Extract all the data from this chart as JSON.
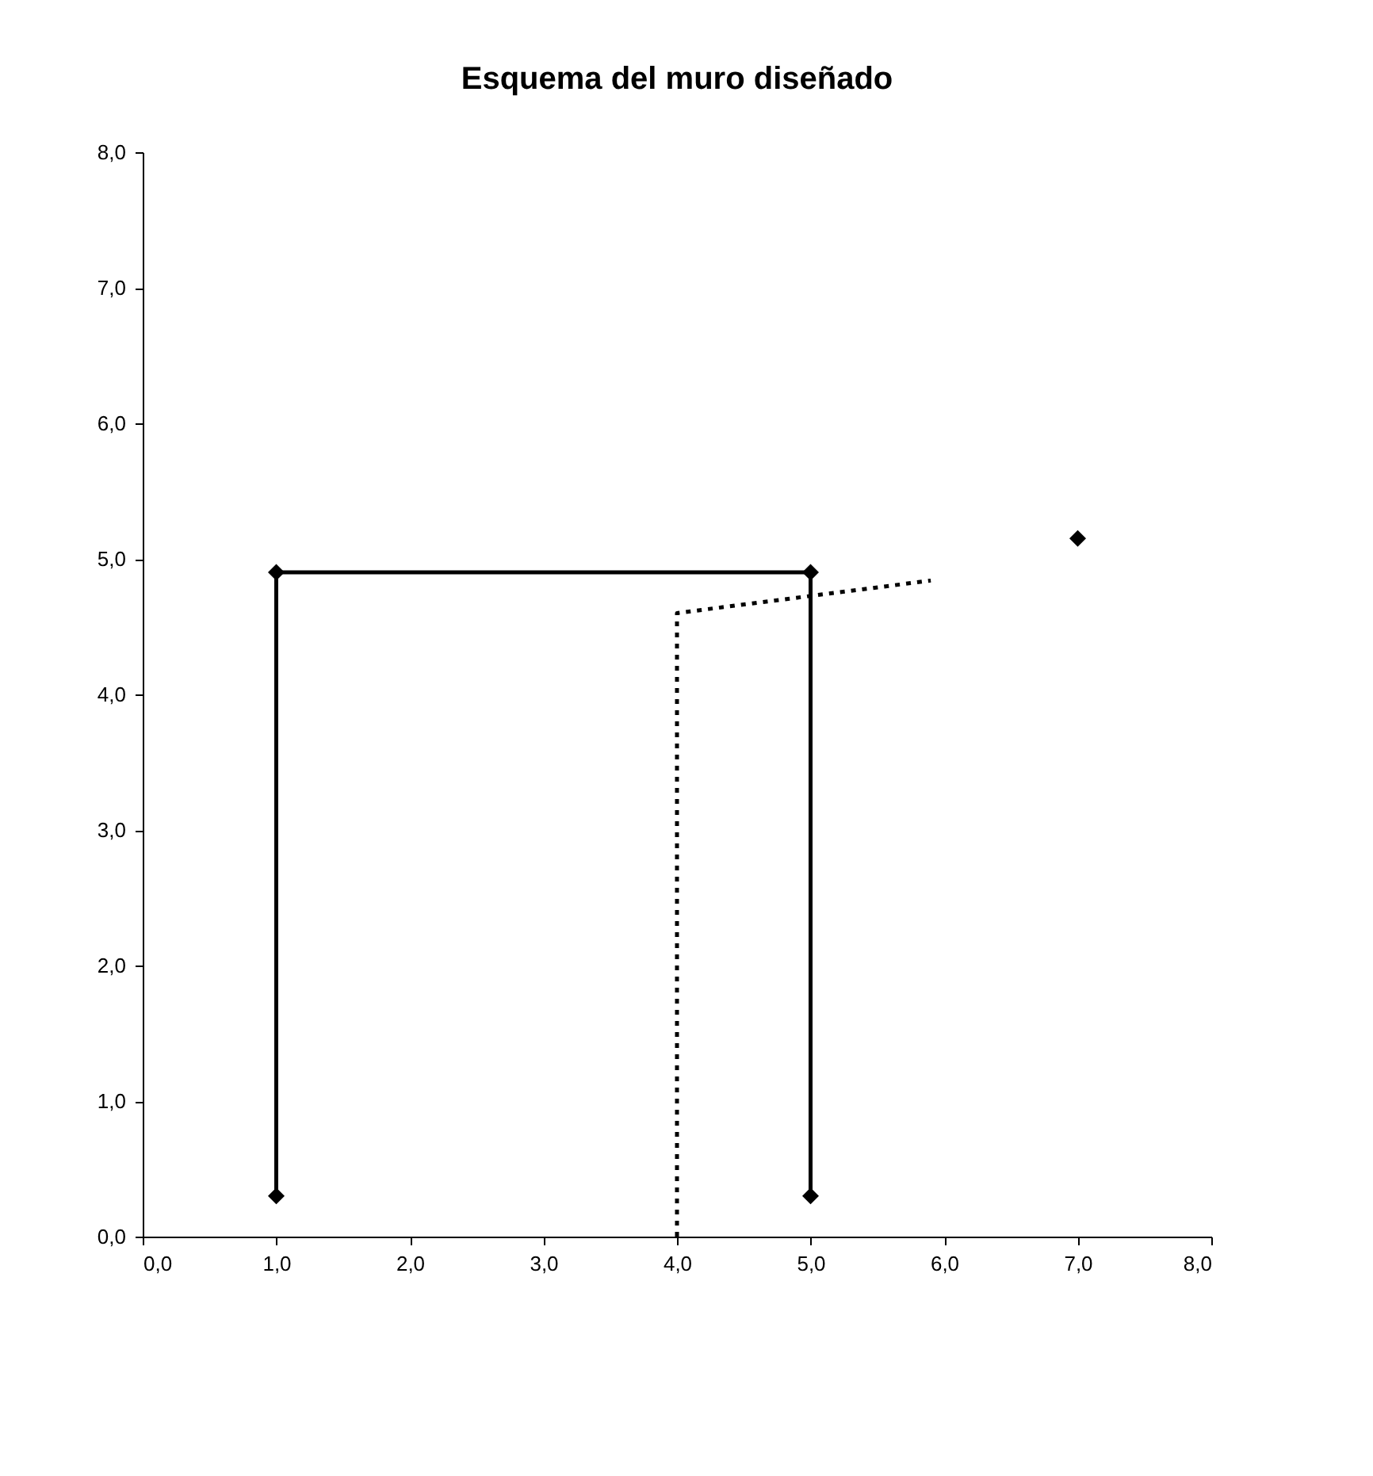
{
  "chart_data": {
    "type": "line",
    "title": "Esquema del muro diseñado",
    "series": [
      {
        "color": "#000000",
        "x": [
          1,
          1,
          5,
          5
        ],
        "values": [
          0.3,
          4.9,
          4.9,
          0.3
        ],
        "marker": "diamond",
        "line_style": "solid"
      },
      {
        "type": "line",
        "color": "#000000",
        "x": [
          4,
          4,
          5.9
        ],
        "values": [
          0,
          4.6,
          4.84
        ],
        "marker": "none",
        "line_style": "dotted"
      },
      {
        "type": "scatter",
        "color": "#000000",
        "x": [
          7
        ],
        "values": [
          5.15
        ],
        "marker": "diamond"
      }
    ],
    "xlim": [
      0,
      8
    ],
    "ylim": [
      0,
      8
    ],
    "xticks": [
      {
        "value": 0,
        "label": "0,0"
      },
      {
        "value": 1,
        "label": "1,0"
      },
      {
        "value": 2,
        "label": "2,0"
      },
      {
        "value": 3,
        "label": "3,0"
      },
      {
        "value": 4,
        "label": "4,0"
      },
      {
        "value": 5,
        "label": "5,0"
      },
      {
        "value": 6,
        "label": "6,0"
      },
      {
        "value": 7,
        "label": "7,0"
      },
      {
        "value": 8,
        "label": "8,0"
      }
    ],
    "yticks": [
      {
        "value": 0,
        "label": "0,0"
      },
      {
        "value": 1,
        "label": "1,0"
      },
      {
        "value": 2,
        "label": "2,0"
      },
      {
        "value": 3,
        "label": "3,0"
      },
      {
        "value": 4,
        "label": "4,0"
      },
      {
        "value": 5,
        "label": "5,0"
      },
      {
        "value": 6,
        "label": "6,0"
      },
      {
        "value": 7,
        "label": "7,0"
      },
      {
        "value": 8,
        "label": "8,0"
      }
    ],
    "grid": false
  }
}
